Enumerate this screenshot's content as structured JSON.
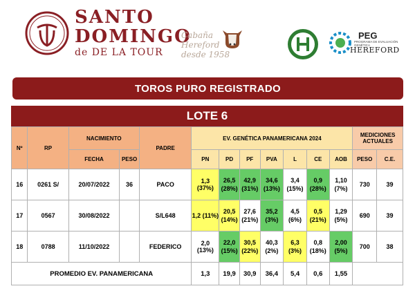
{
  "header": {
    "brand_line1": "SANTO",
    "brand_line2": "DOMINGO",
    "brand_line3": "de DE LA TOUR",
    "cabana_line1": "Cabaña",
    "cabana_line2": "Hereford",
    "cabana_line3": "desde 1958",
    "peg_title": "PEG",
    "peg_sub": "PROGRAMA DE EVALUACIÓN GENÉTICA",
    "peg_hereford": "HEREFORD"
  },
  "banner_title": "TOROS PURO REGISTRADO",
  "lote_title": "LOTE 6",
  "columns": {
    "num": "Nº",
    "rp": "RP",
    "nacimiento": "NACIMIENTO",
    "fecha": "FECHA",
    "peso": "PESO",
    "padre": "PADRE",
    "ev_group": "EV. GENÉTICA PANAMERICANA 2024",
    "pn": "PN",
    "pd": "PD",
    "pf": "PF",
    "pva": "PVA",
    "l": "L",
    "ce": "CE",
    "aob": "AOB",
    "mediciones": "MEDICIONES ACTUALES",
    "med_peso": "PESO",
    "med_ce": "C.E."
  },
  "rows": [
    {
      "num": "16",
      "rp": "0261 S/",
      "fecha": "20/07/2022",
      "peso": "36",
      "padre": "PACO",
      "pn": "1,3 (37%)",
      "pd_a": "26,5",
      "pd_b": "(28%)",
      "pf_a": "42,9",
      "pf_b": "(31%)",
      "pva_a": "34,6",
      "pva_b": "(13%)",
      "l_a": "3,4",
      "l_b": "(15%)",
      "ce_a": "0,9",
      "ce_b": "(28%)",
      "aob_a": "1,10",
      "aob_b": "(7%)",
      "med_peso": "730",
      "med_ce": "39"
    },
    {
      "num": "17",
      "rp": "0567",
      "fecha": "30/08/2022",
      "peso": "",
      "padre": "S/L648",
      "pn": "1,2 (11%)",
      "pd_a": "20,5",
      "pd_b": "(14%)",
      "pf_a": "27,6",
      "pf_b": "(21%)",
      "pva_a": "35,2",
      "pva_b": "(3%)",
      "l_a": "4,5",
      "l_b": "(6%)",
      "ce_a": "0,5",
      "ce_b": "(21%)",
      "aob_a": "1,29",
      "aob_b": "(5%)",
      "med_peso": "690",
      "med_ce": "39"
    },
    {
      "num": "18",
      "rp": "0788",
      "fecha": "11/10/2022",
      "peso": "",
      "padre": "FEDERICO",
      "pn": "2,0 (13%)",
      "pd_a": "22,0",
      "pd_b": "(15%)",
      "pf_a": "30,5",
      "pf_b": "(22%)",
      "pva_a": "40,3",
      "pva_b": "(2%)",
      "l_a": "6,3",
      "l_b": "(3%)",
      "ce_a": "0,8",
      "ce_b": "(18%)",
      "aob_a": "2,00",
      "aob_b": "(5%)",
      "med_peso": "700",
      "med_ce": "38"
    }
  ],
  "promedio": {
    "label": "PROMEDIO EV. PANAMERICANA",
    "pn": "1,3",
    "pd": "19,9",
    "pf": "30,9",
    "pva": "36,4",
    "l": "5,4",
    "ce": "0,6",
    "aob": "1,55"
  },
  "colors": {
    "brand": "#8c1b1b",
    "highlight_yellow": "#ffff66",
    "highlight_green": "#66cc66",
    "header_orange": "#f4b183",
    "header_green": "#c9e7b8"
  },
  "icons": {
    "seal": "brand-seal-icon",
    "cow": "hereford-cow-icon",
    "association": "hereford-association-icon",
    "peg": "peg-gear-icon"
  }
}
